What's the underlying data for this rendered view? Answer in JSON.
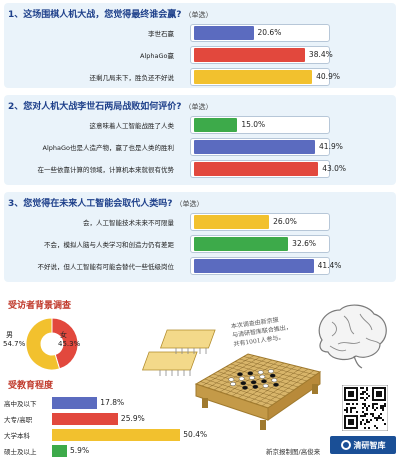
{
  "chart_data": [
    {
      "type": "bar",
      "title": "1、这场围棋人机大战，您觉得最终谁会赢?",
      "note": "（单选）",
      "categories": [
        "李世石赢",
        "AlphaGo赢",
        "还剩几局未下，胜负还不好说"
      ],
      "values": [
        20.6,
        38.4,
        40.9
      ],
      "labels": [
        "20.6%",
        "38.4%",
        "40.9%"
      ],
      "colors": [
        "#5b6bbf",
        "#e2483d",
        "#f2c12e"
      ],
      "xlim": [
        0,
        45
      ]
    },
    {
      "type": "bar",
      "title": "2、您对人机大战李世石两局战败如何评价?",
      "note": "（单选）",
      "categories": [
        "这意味着人工智能战胜了人类",
        "AlphaGo也是人造产物，赢了也是人类的胜利",
        "在一些依靠计算的领域，计算机本来就很有优势"
      ],
      "values": [
        15.0,
        41.9,
        43.0
      ],
      "labels": [
        "15.0%",
        "41.9%",
        "43.0%"
      ],
      "colors": [
        "#3daa4a",
        "#5b6bbf",
        "#e2483d"
      ],
      "xlim": [
        0,
        45
      ]
    },
    {
      "type": "bar",
      "title": "3、您觉得在未来人工智能会取代人类吗?",
      "note": "（单选）",
      "categories": [
        "会，人工智能技术未来不可限量",
        "不会，模拟人脑与人类学习和创造力仍有差距",
        "不好说，但人工智能有可能会替代一些低级岗位"
      ],
      "values": [
        26.0,
        32.6,
        41.4
      ],
      "labels": [
        "26.0%",
        "32.6%",
        "41.4%"
      ],
      "colors": [
        "#f2c12e",
        "#3daa4a",
        "#5b6bbf"
      ],
      "xlim": [
        0,
        45
      ]
    },
    {
      "type": "pie",
      "title": "受访者背景调查",
      "categories": [
        "男",
        "女"
      ],
      "values": [
        54.7,
        45.3
      ],
      "labels": [
        "54.7%",
        "45.3%"
      ],
      "colors": [
        "#f2c12e",
        "#e2483d"
      ]
    },
    {
      "type": "bar",
      "title": "受教育程度",
      "categories": [
        "高中及以下",
        "大专/高职",
        "大学本科",
        "硕士及以上"
      ],
      "values": [
        17.8,
        25.9,
        50.4,
        5.9
      ],
      "labels": [
        "17.8%",
        "25.9%",
        "50.4%",
        "5.9%"
      ],
      "colors": [
        "#5b6bbf",
        "#e2483d",
        "#f2c12e",
        "#3daa4a"
      ],
      "xlim": [
        0,
        55
      ]
    }
  ],
  "annotations": {
    "survey_note": [
      "本次调查由新京报",
      "与清研智库联合推出，",
      "共有1001人参与。"
    ],
    "credit": "新京报制图/高俊来",
    "logo_text": "清研智库"
  }
}
